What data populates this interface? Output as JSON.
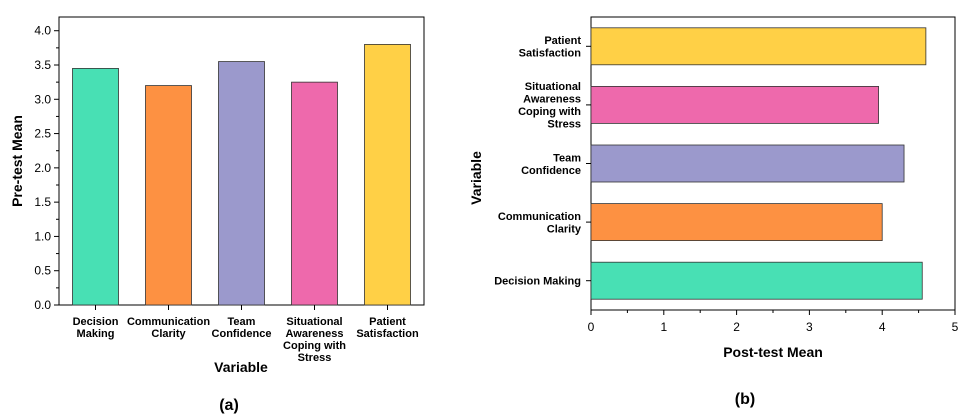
{
  "chart_data": [
    {
      "type": "bar",
      "orientation": "vertical",
      "panel_label": "(a)",
      "xlabel": "Variable",
      "ylabel": "Pre-test Mean",
      "ylim": [
        0,
        4.2
      ],
      "yticks": [
        "0.0",
        "0.5",
        "1.0",
        "1.5",
        "2.0",
        "2.5",
        "3.0",
        "3.5",
        "4.0"
      ],
      "categories": [
        [
          "Decision",
          "Making"
        ],
        [
          "Communication",
          "Clarity"
        ],
        [
          "Team",
          "Confidence"
        ],
        [
          "Situational",
          "Awareness",
          "Coping with",
          "Stress"
        ],
        [
          "Patient",
          "Satisfaction"
        ]
      ],
      "values": [
        3.45,
        3.2,
        3.55,
        3.25,
        3.8
      ],
      "colors": [
        "#48E0B4",
        "#FD9142",
        "#9B99CC",
        "#EE69AC",
        "#FFD046"
      ],
      "grid": false
    },
    {
      "type": "bar",
      "orientation": "horizontal",
      "panel_label": "(b)",
      "xlabel": "Post-test Mean",
      "ylabel": "Variable",
      "xlim": [
        0,
        5
      ],
      "xticks": [
        "0",
        "1",
        "2",
        "3",
        "4",
        "5"
      ],
      "categories": [
        [
          "Decision Making"
        ],
        [
          "Communication",
          "Clarity"
        ],
        [
          "Team",
          "Confidence"
        ],
        [
          "Situational",
          "Awareness",
          "Coping with",
          "Stress"
        ],
        [
          "Patient",
          "Satisfaction"
        ]
      ],
      "values": [
        4.55,
        4.0,
        4.3,
        3.95,
        4.6
      ],
      "colors": [
        "#48E0B4",
        "#FD9142",
        "#9B99CC",
        "#EE69AC",
        "#FFD046"
      ],
      "grid": false
    }
  ]
}
